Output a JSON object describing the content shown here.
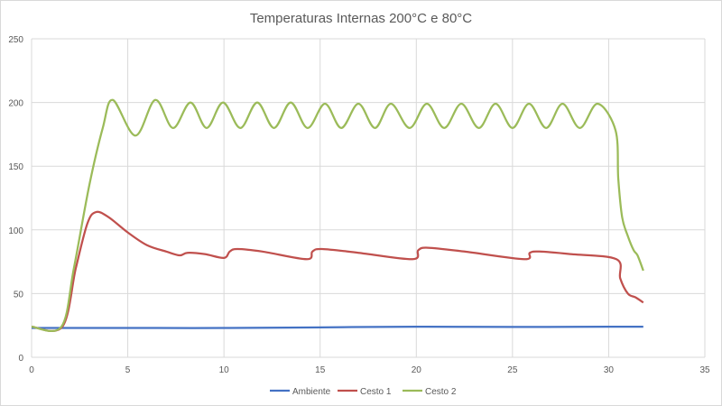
{
  "chart_data": {
    "type": "line",
    "title": "Temperaturas Internas 200°C e 80°C",
    "xlabel": "",
    "ylabel": "",
    "xlim": [
      0,
      35
    ],
    "ylim": [
      0,
      250
    ],
    "xticks": [
      "0",
      "5",
      "10",
      "15",
      "20",
      "25",
      "30",
      "35"
    ],
    "yticks": [
      "0",
      "50",
      "100",
      "150",
      "200",
      "250"
    ],
    "grid": true,
    "legend_position": "bottom",
    "series": [
      {
        "name": "Ambiente",
        "color": "#4472C4",
        "x": [
          0,
          5,
          10,
          15,
          20,
          25,
          30,
          31.8
        ],
        "y": [
          23,
          23,
          23,
          23.5,
          24,
          23.8,
          24,
          24
        ]
      },
      {
        "name": "Cesto 1",
        "color": "#C0504D",
        "x": [
          0,
          1.6,
          2.3,
          2.9,
          3.35,
          4,
          5,
          6,
          7,
          7.7,
          8.1,
          9,
          10,
          10.3,
          10.7,
          12,
          14.3,
          14.6,
          15.1,
          17,
          19.8,
          20.1,
          20.6,
          22.5,
          25.6,
          25.9,
          26.4,
          28,
          30.4,
          30.6,
          31.0,
          31.4,
          31.8
        ],
        "y": [
          24,
          24,
          70,
          105,
          114,
          110,
          98,
          88,
          83,
          80,
          82,
          81,
          78,
          83,
          85,
          83,
          77,
          83,
          85,
          82,
          77,
          84,
          86,
          83,
          77,
          82,
          83,
          81,
          77,
          62,
          50,
          47,
          43
        ]
      },
      {
        "name": "Cesto 2",
        "color": "#9BBB59",
        "x": [
          0,
          1.55,
          2.2,
          3.0,
          3.7,
          4.22,
          5.4,
          6.43,
          7.35,
          8.26,
          9.1,
          9.95,
          10.85,
          11.73,
          12.6,
          13.47,
          14.35,
          15.25,
          16.1,
          16.99,
          17.85,
          18.68,
          19.65,
          20.55,
          21.45,
          22.34,
          23.25,
          24.12,
          25.0,
          25.86,
          26.75,
          27.6,
          28.5,
          29.42,
          30.36,
          30.5,
          30.7,
          31.0,
          31.3,
          31.5,
          31.8
        ],
        "y": [
          24,
          24,
          70,
          135,
          180,
          202,
          174,
          202,
          180,
          200,
          180,
          200,
          180,
          200,
          180,
          200,
          180,
          199,
          180,
          199,
          180,
          199,
          180,
          199,
          180,
          199,
          180,
          199,
          180,
          199,
          180,
          199,
          180,
          199,
          178,
          140,
          110,
          95,
          84,
          80,
          68
        ]
      }
    ]
  }
}
